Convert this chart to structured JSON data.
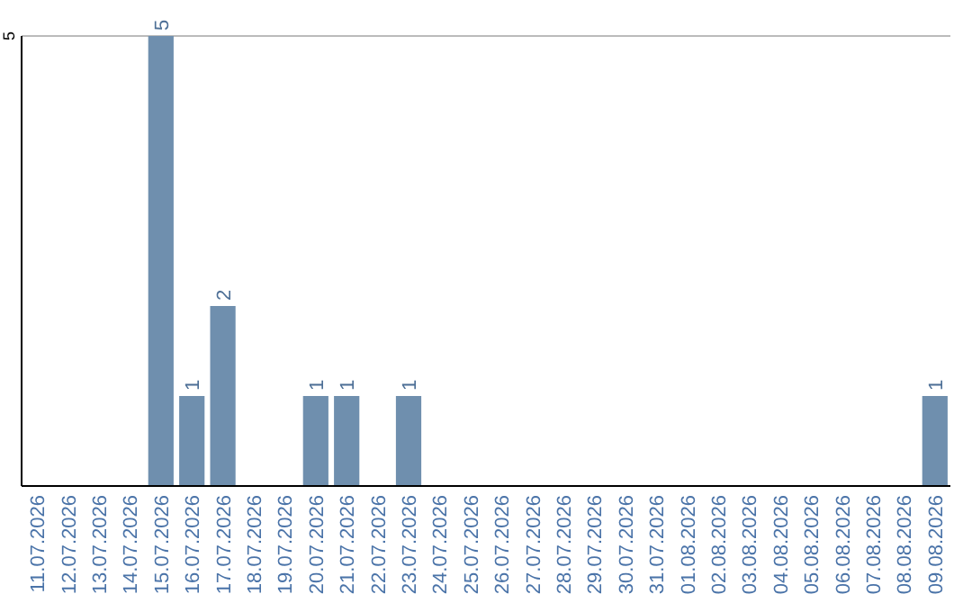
{
  "chart_data": {
    "type": "bar",
    "categories": [
      "11.07.2026",
      "12.07.2026",
      "13.07.2026",
      "14.07.2026",
      "15.07.2026",
      "16.07.2026",
      "17.07.2026",
      "18.07.2026",
      "19.07.2026",
      "20.07.2026",
      "21.07.2026",
      "22.07.2026",
      "23.07.2026",
      "24.07.2026",
      "25.07.2026",
      "26.07.2026",
      "27.07.2026",
      "28.07.2026",
      "29.07.2026",
      "30.07.2026",
      "31.07.2026",
      "01.08.2026",
      "02.08.2026",
      "03.08.2026",
      "04.08.2026",
      "05.08.2026",
      "06.08.2026",
      "07.08.2026",
      "08.08.2026",
      "09.08.2026"
    ],
    "values": [
      0,
      0,
      0,
      0,
      5,
      1,
      2,
      0,
      0,
      1,
      1,
      0,
      1,
      0,
      0,
      0,
      0,
      0,
      0,
      0,
      0,
      0,
      0,
      0,
      0,
      0,
      0,
      0,
      0,
      1
    ],
    "value_labels": [
      null,
      null,
      null,
      null,
      "5",
      "1",
      "2",
      null,
      null,
      "1",
      "1",
      null,
      "1",
      null,
      null,
      null,
      null,
      null,
      null,
      null,
      null,
      null,
      null,
      null,
      null,
      null,
      null,
      null,
      null,
      "1"
    ],
    "color": "#6f8fae",
    "ylim": [
      0,
      5
    ],
    "yticks": [
      5
    ],
    "ref_lines": [
      {
        "axis": "y",
        "value": 5,
        "color": "#bbbbbb"
      }
    ]
  }
}
